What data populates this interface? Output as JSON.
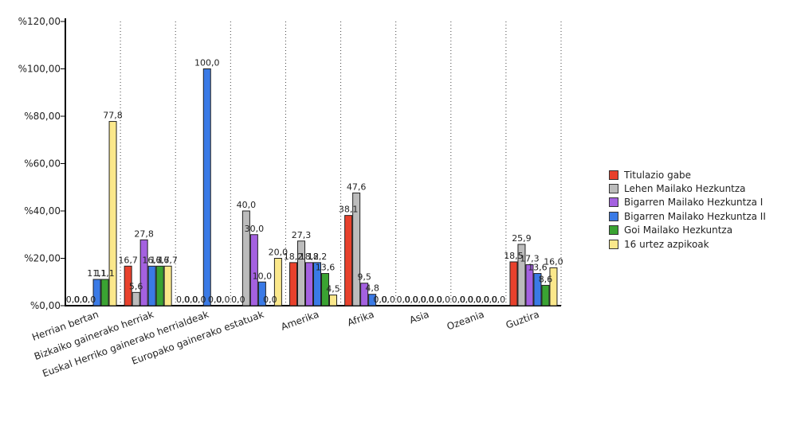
{
  "chart_data": {
    "type": "bar",
    "categories": [
      "Herrian bertan",
      "Bizkaiko gainerako herriak",
      "Euskal Herriko gainerako herrialdeak",
      "Europako gainerako estatuak",
      "Amerika",
      "Afrika",
      "Asia",
      "Ozeania",
      "Guztira"
    ],
    "series": [
      {
        "name": "Titulazio gabe",
        "color": "#e8412c",
        "values": [
          0.0,
          16.7,
          0.0,
          0.0,
          18.2,
          38.1,
          0.0,
          0.0,
          18.5
        ]
      },
      {
        "name": "Lehen Mailako Hezkuntza",
        "color": "#bcbcbc",
        "values": [
          0.0,
          5.6,
          0.0,
          40.0,
          27.3,
          47.6,
          0.0,
          0.0,
          25.9
        ]
      },
      {
        "name": "Bigarren Mailako Hezkuntza I",
        "color": "#a461e0",
        "values": [
          0.0,
          27.8,
          0.0,
          30.0,
          18.2,
          9.5,
          0.0,
          0.0,
          17.3
        ]
      },
      {
        "name": "Bigarren Mailako Hezkuntza II",
        "color": "#3a7ae6",
        "values": [
          11.1,
          16.7,
          100.0,
          10.0,
          18.2,
          4.8,
          0.0,
          0.0,
          13.6
        ]
      },
      {
        "name": "Goi Mailako Hezkuntza",
        "color": "#3aa332",
        "values": [
          11.1,
          16.7,
          0.0,
          0.0,
          13.6,
          0.0,
          0.0,
          0.0,
          8.6
        ]
      },
      {
        "name": "16 urtez azpikoak",
        "color": "#fbe88b",
        "values": [
          77.8,
          16.7,
          0.0,
          20.0,
          4.5,
          0.0,
          0.0,
          0.0,
          16.0
        ]
      }
    ],
    "value_labels": [
      [
        "0,0",
        "16,7",
        "0,0",
        "0,0",
        "18,2",
        "38,1",
        "0,0",
        "0,0",
        "18,5"
      ],
      [
        "0,0",
        "5,6",
        "0,0",
        "40,0",
        "27,3",
        "47,6",
        "0,0",
        "0,0",
        "25,9"
      ],
      [
        "0,0",
        "27,8",
        "0,0",
        "30,0",
        "18,2",
        "9,5",
        "0,0",
        "0,0",
        "17,3"
      ],
      [
        "11,1",
        "16,7",
        "100,0",
        "10,0",
        "18,2",
        "4,8",
        "0,0",
        "0,0",
        "13,6"
      ],
      [
        "11,1",
        "16,7",
        "0,0",
        "0,0",
        "13,6",
        "0,0",
        "0,0",
        "0,0",
        "8,6"
      ],
      [
        "77,8",
        "16,7",
        "0,0",
        "20,0",
        "4,5",
        "0,0",
        "0,0",
        "0,0",
        "16,0"
      ]
    ],
    "yticks": [
      0,
      20,
      40,
      60,
      80,
      100,
      120
    ],
    "ytick_labels": [
      "%0,00",
      "%20,00",
      "%40,00",
      "%60,00",
      "%80,00",
      "%100,00",
      "%120,00"
    ],
    "ylim": [
      0,
      120
    ],
    "title": "",
    "xlabel": "",
    "ylabel": "",
    "grid": "vertical dotted between categories",
    "legend_position": "right"
  }
}
